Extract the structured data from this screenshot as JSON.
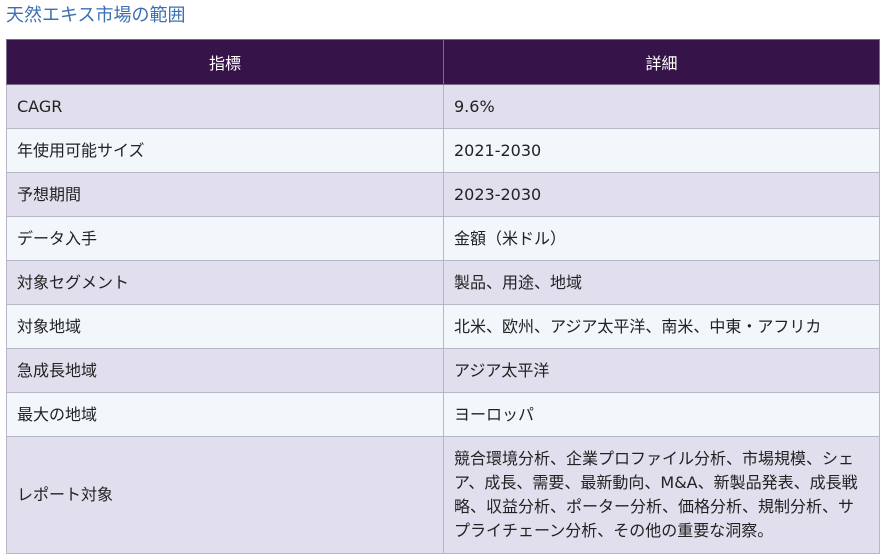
{
  "title": "天然エキス市場の範囲",
  "table": {
    "headers": [
      "指標",
      "詳細"
    ],
    "rows": [
      {
        "metric": "CAGR",
        "detail": "9.6%"
      },
      {
        "metric": "年使用可能サイズ",
        "detail": "2021-2030"
      },
      {
        "metric": "予想期間",
        "detail": "2023-2030"
      },
      {
        "metric": "データ入手",
        "detail": "金額（米ドル）"
      },
      {
        "metric": "対象セグメント",
        "detail": "製品、用途、地域"
      },
      {
        "metric": "対象地域",
        "detail": "北米、欧州、アジア太平洋、南米、中東・アフリカ"
      },
      {
        "metric": "急成長地域",
        "detail": "アジア太平洋"
      },
      {
        "metric": "最大の地域",
        "detail": "ヨーロッパ"
      },
      {
        "metric": "レポート対象",
        "detail": "競合環境分析、企業プロファイル分析、市場規模、シェア、成長、需要、最新動向、M&A、新製品発表、成長戦略、収益分析、ポーター分析、価格分析、規制分析、サプライチェーン分析、その他の重要な洞察。"
      }
    ]
  },
  "colors": {
    "header_bg": "#361349",
    "title_color": "#3b6fb5",
    "row_odd_bg": "#e1dfed",
    "row_even_bg": "#f2f7fb"
  }
}
